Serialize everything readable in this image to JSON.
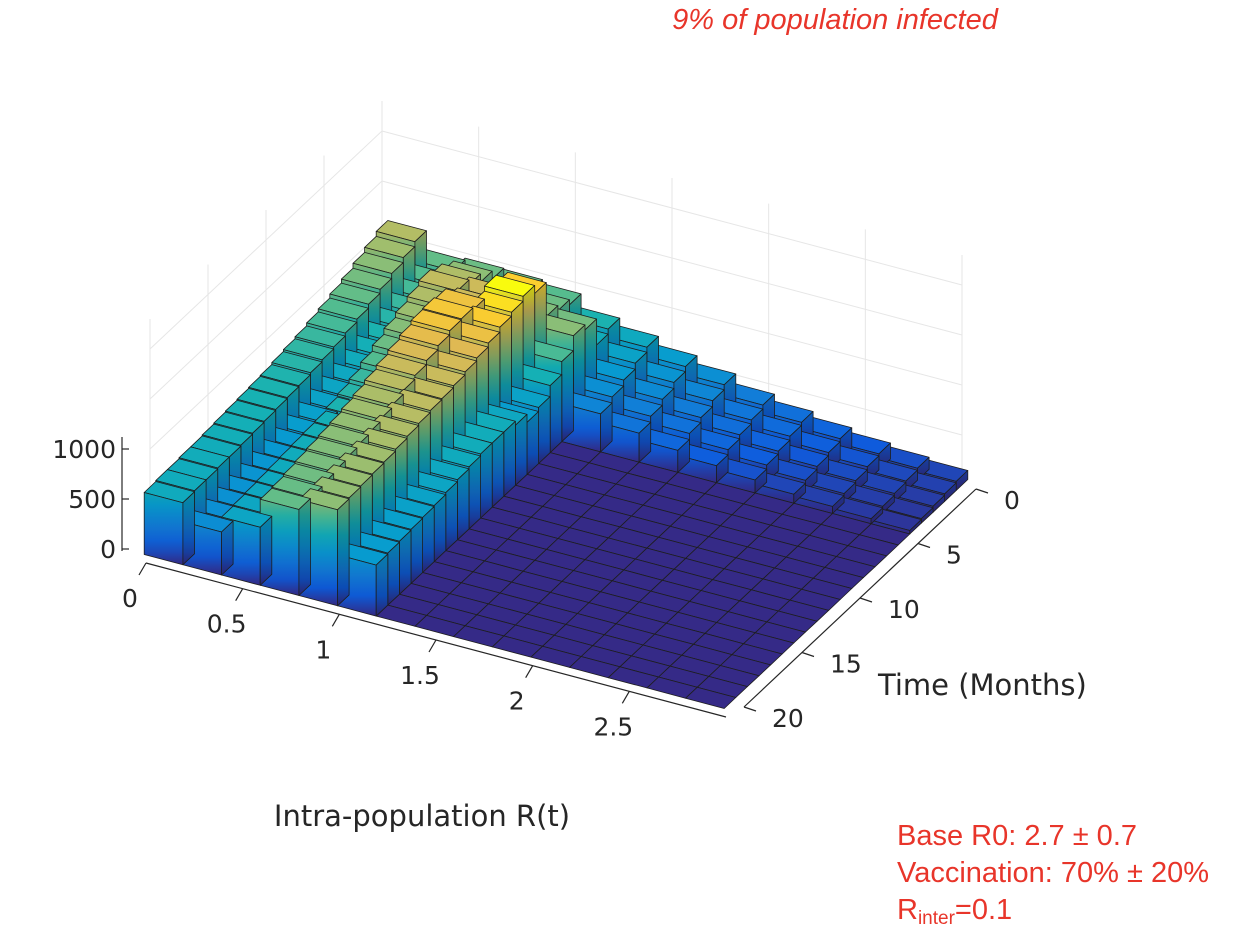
{
  "annotations": {
    "headline": "9% of population infected",
    "base_r0": "Base R0: 2.7 ± 0.7",
    "vaccination": "Vaccination: 70% ± 20%",
    "rinter_main": "R",
    "rinter_sub": "inter",
    "rinter_value": "=0.1"
  },
  "chart_data": {
    "type": "bar3d",
    "title": "",
    "xlabel": "Intra-population R(t)",
    "ylabel": "Time (Months)",
    "zlabel": "",
    "x_ticks": [
      "0",
      "0.5",
      "1",
      "1.5",
      "2",
      "2.5"
    ],
    "y_ticks": [
      "0",
      "5",
      "10",
      "15",
      "20"
    ],
    "z_ticks": [
      "0",
      "500",
      "1000"
    ],
    "x_range": [
      0,
      3
    ],
    "y_range": [
      0,
      20
    ],
    "z_range": [
      0,
      1000
    ],
    "grid": true,
    "colormap": "parula",
    "x_bin_width": 0.2,
    "y_bin_width": 1,
    "R_centers": [
      0.1,
      0.3,
      0.5,
      0.7,
      0.9,
      1.1,
      1.3,
      1.5,
      1.7,
      1.9,
      2.1,
      2.3,
      2.5,
      2.7,
      2.9
    ],
    "months": [
      0,
      1,
      2,
      3,
      4,
      5,
      6,
      7,
      8,
      9,
      10,
      11,
      12,
      13,
      14,
      15,
      16,
      17,
      18,
      19,
      20
    ],
    "values_by_month": [
      [
        1050,
        860,
        880,
        870,
        830,
        690,
        610,
        520,
        440,
        340,
        270,
        210,
        160,
        120,
        90
      ],
      [
        1000,
        820,
        960,
        860,
        880,
        640,
        560,
        470,
        390,
        300,
        240,
        180,
        140,
        100,
        75
      ],
      [
        950,
        790,
        1040,
        960,
        930,
        900,
        500,
        410,
        330,
        260,
        200,
        150,
        110,
        85,
        60
      ],
      [
        900,
        760,
        1090,
        1120,
        1270,
        950,
        440,
        350,
        280,
        220,
        170,
        120,
        90,
        65,
        45
      ],
      [
        860,
        720,
        1040,
        1120,
        1350,
        800,
        380,
        290,
        220,
        170,
        130,
        90,
        70,
        50,
        35
      ],
      [
        820,
        690,
        990,
        1220,
        1300,
        670,
        0,
        0,
        0,
        0,
        0,
        0,
        0,
        0,
        0
      ],
      [
        790,
        660,
        940,
        1240,
        1260,
        560,
        0,
        0,
        0,
        0,
        0,
        0,
        0,
        0,
        0
      ],
      [
        760,
        630,
        880,
        1230,
        1210,
        520,
        0,
        0,
        0,
        0,
        0,
        0,
        0,
        0,
        0
      ],
      [
        740,
        600,
        820,
        1190,
        1170,
        600,
        0,
        0,
        0,
        0,
        0,
        0,
        0,
        0,
        0
      ],
      [
        720,
        580,
        760,
        1150,
        1140,
        640,
        0,
        0,
        0,
        0,
        0,
        0,
        0,
        0,
        0
      ],
      [
        700,
        560,
        720,
        1110,
        1110,
        640,
        0,
        0,
        0,
        0,
        0,
        0,
        0,
        0,
        0
      ],
      [
        690,
        540,
        690,
        1070,
        1090,
        640,
        0,
        0,
        0,
        0,
        0,
        0,
        0,
        0,
        0
      ],
      [
        680,
        520,
        660,
        1030,
        1080,
        620,
        0,
        0,
        0,
        0,
        0,
        0,
        0,
        0,
        0
      ],
      [
        670,
        500,
        650,
        1000,
        1060,
        600,
        0,
        0,
        0,
        0,
        0,
        0,
        0,
        0,
        0
      ],
      [
        660,
        490,
        640,
        970,
        1040,
        580,
        0,
        0,
        0,
        0,
        0,
        0,
        0,
        0,
        0
      ],
      [
        650,
        480,
        630,
        950,
        1020,
        560,
        0,
        0,
        0,
        0,
        0,
        0,
        0,
        0,
        0
      ],
      [
        640,
        470,
        620,
        930,
        1000,
        550,
        0,
        0,
        0,
        0,
        0,
        0,
        0,
        0,
        0
      ],
      [
        640,
        460,
        610,
        910,
        990,
        540,
        0,
        0,
        0,
        0,
        0,
        0,
        0,
        0,
        0
      ],
      [
        630,
        450,
        600,
        890,
        980,
        530,
        0,
        0,
        0,
        0,
        0,
        0,
        0,
        0,
        0
      ],
      [
        630,
        440,
        590,
        870,
        970,
        520,
        0,
        0,
        0,
        0,
        0,
        0,
        0,
        0,
        0
      ],
      [
        620,
        430,
        580,
        860,
        960,
        510,
        0,
        0,
        0,
        0,
        0,
        0,
        0,
        0,
        0
      ]
    ]
  }
}
